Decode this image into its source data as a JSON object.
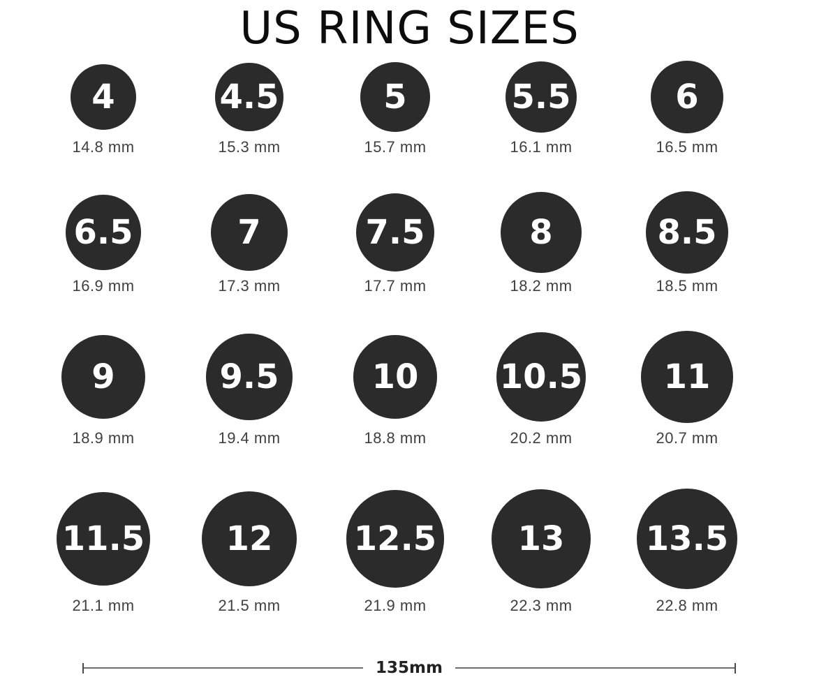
{
  "title": "US RING SIZES",
  "colors": {
    "circle_fill": "#2b2b2b",
    "circle_text": "#ffffff",
    "mm_label_text": "#404040",
    "title_text": "#0d0d0d",
    "scale_line": "#6e6e6e",
    "scale_tick": "#4a4a4a",
    "scale_text": "#222222",
    "background": "#ffffff"
  },
  "rings": [
    {
      "size": "4",
      "mm": "14.8 mm"
    },
    {
      "size": "4.5",
      "mm": "15.3 mm"
    },
    {
      "size": "5",
      "mm": "15.7 mm"
    },
    {
      "size": "5.5",
      "mm": "16.1 mm"
    },
    {
      "size": "6",
      "mm": "16.5 mm"
    },
    {
      "size": "6.5",
      "mm": "16.9 mm"
    },
    {
      "size": "7",
      "mm": "17.3 mm"
    },
    {
      "size": "7.5",
      "mm": "17.7 mm"
    },
    {
      "size": "8",
      "mm": "18.2 mm"
    },
    {
      "size": "8.5",
      "mm": "18.5 mm"
    },
    {
      "size": "9",
      "mm": "18.9 mm"
    },
    {
      "size": "9.5",
      "mm": "19.4 mm"
    },
    {
      "size": "10",
      "mm": "18.8 mm"
    },
    {
      "size": "10.5",
      "mm": "20.2 mm"
    },
    {
      "size": "11",
      "mm": "20.7 mm"
    },
    {
      "size": "11.5",
      "mm": "21.1 mm"
    },
    {
      "size": "12",
      "mm": "21.5 mm"
    },
    {
      "size": "12.5",
      "mm": "21.9 mm"
    },
    {
      "size": "13",
      "mm": "22.3 mm"
    },
    {
      "size": "13.5",
      "mm": "22.8 mm"
    }
  ],
  "scale": {
    "label": "135mm"
  }
}
